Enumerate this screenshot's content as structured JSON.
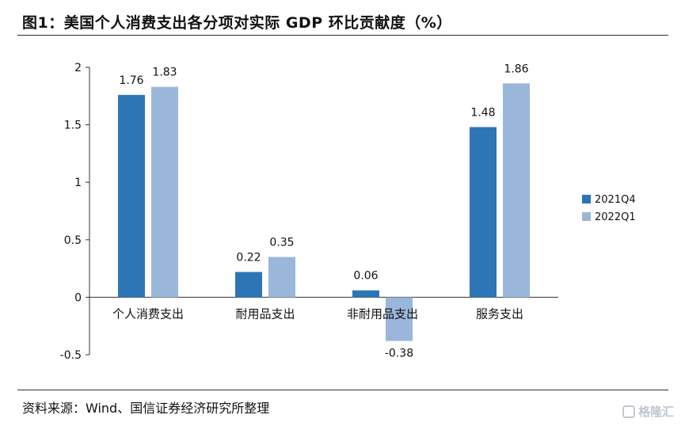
{
  "title": "图1：美国个人消费支出各分项对实际 GDP 环比贡献度（%）",
  "source": "资料来源：Wind、国信证券经济研究所整理",
  "watermark": "格隆汇",
  "chart_data": {
    "type": "bar",
    "title": "图1：美国个人消费支出各分项对实际 GDP 环比贡献度（%）",
    "categories": [
      "个人消费支出",
      "耐用品支出",
      "非耐用品支出",
      "服务支出"
    ],
    "series": [
      {
        "name": "2021Q4",
        "color": "#2e75b6",
        "values": [
          1.76,
          0.22,
          0.06,
          1.48
        ]
      },
      {
        "name": "2022Q1",
        "color": "#9ab7db",
        "values": [
          1.83,
          0.35,
          -0.38,
          1.86
        ]
      }
    ],
    "yticks": [
      "2",
      "1.5",
      "1",
      "0.5",
      "0",
      "-0.5"
    ],
    "ylim": [
      -0.5,
      2
    ],
    "legend_position": "right",
    "grid": false
  }
}
